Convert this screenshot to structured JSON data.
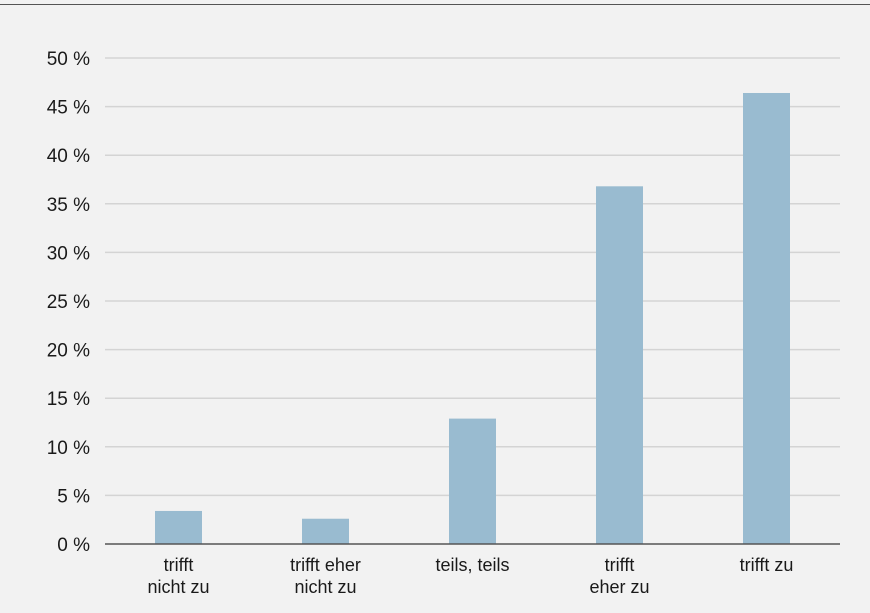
{
  "chart_data": {
    "type": "bar",
    "title": "",
    "xlabel": "",
    "ylabel": "",
    "categories": [
      [
        "trifft",
        "nicht zu"
      ],
      [
        "trifft eher",
        "nicht zu"
      ],
      [
        "teils, teils"
      ],
      [
        "trifft",
        "eher zu"
      ],
      [
        "trifft zu"
      ]
    ],
    "values": [
      3.4,
      2.6,
      12.9,
      36.8,
      46.4
    ],
    "unit": "%",
    "ylim": [
      0,
      50
    ],
    "yticks": [
      0,
      5,
      10,
      15,
      20,
      25,
      30,
      35,
      40,
      45,
      50
    ],
    "ytick_labels": [
      "0 %",
      "5 %",
      "10 %",
      "15 %",
      "20 %",
      "25 %",
      "30 %",
      "35 %",
      "40 %",
      "45 %",
      "50 %"
    ],
    "grid": true,
    "legend": "none",
    "colors": {
      "bar": "#99bbd0",
      "grid": "#d4d4d4",
      "axis": "#555555",
      "background": "#f2f2f2",
      "text": "#1a1a1a"
    }
  }
}
